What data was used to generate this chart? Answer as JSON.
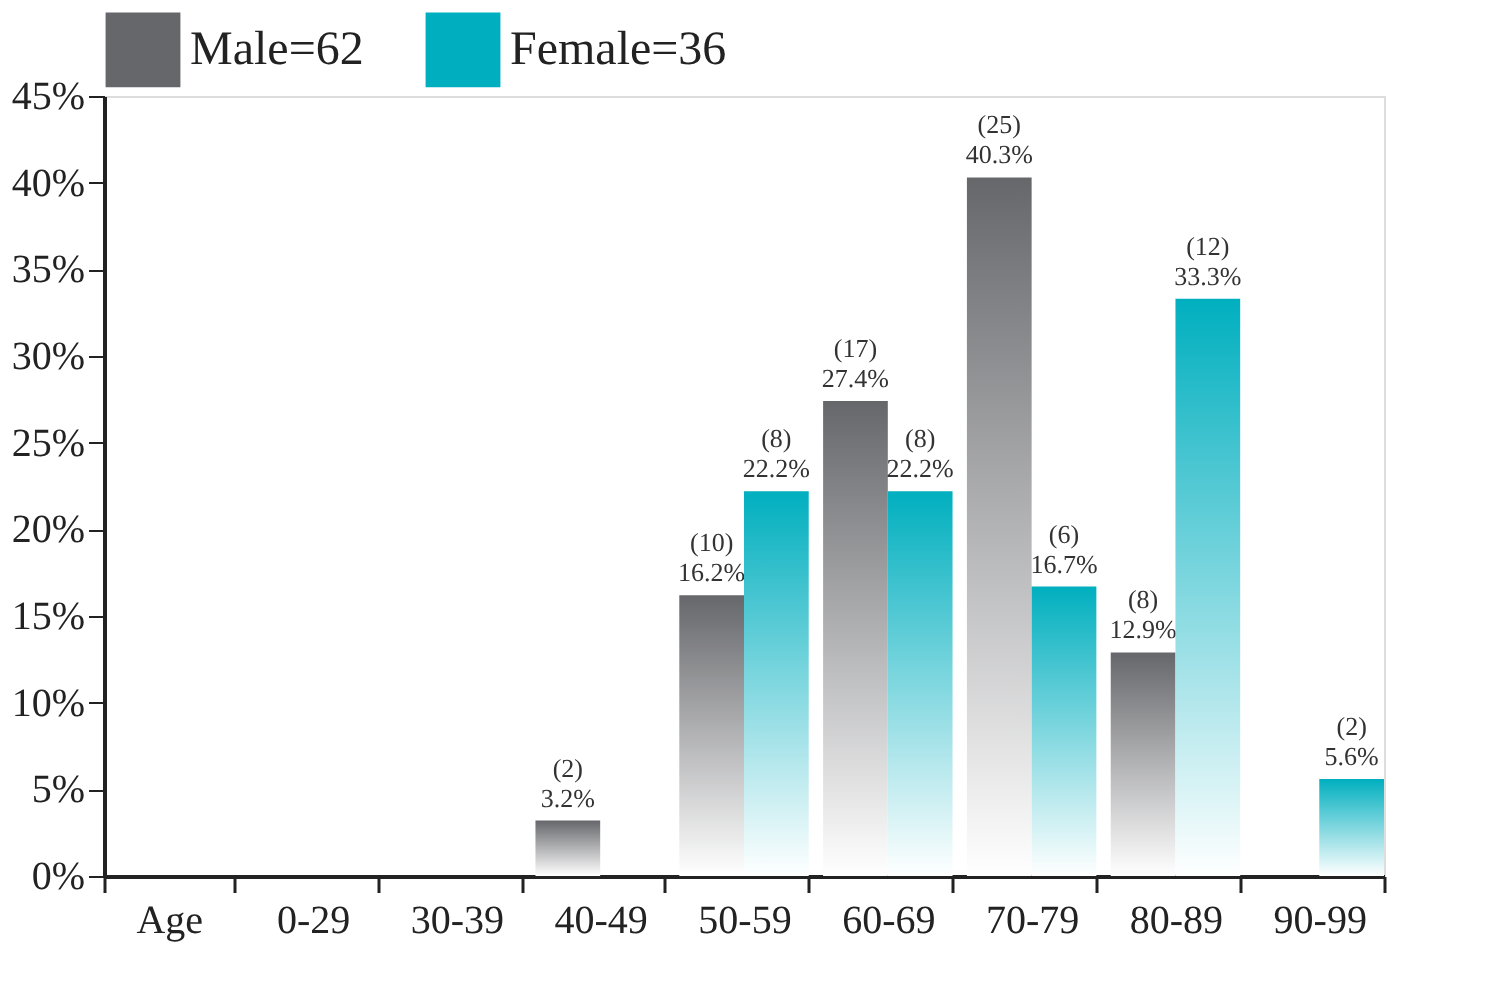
{
  "chart_data": {
    "type": "bar",
    "categories": [
      "Age",
      "0-29",
      "30-39",
      "40-49",
      "50-59",
      "60-69",
      "70-79",
      "80-89",
      "90-99"
    ],
    "series": [
      {
        "name": "Male=62",
        "color": "#66676b",
        "values": [
          null,
          null,
          null,
          3.2,
          16.2,
          27.4,
          40.3,
          12.9,
          null
        ],
        "value_labels": [
          null,
          null,
          null,
          "(2)\n3.2%",
          "(10)\n16.2%",
          "(17)\n27.4%",
          "(25)\n40.3%",
          "(8)\n12.9%",
          null
        ]
      },
      {
        "name": "Female=36",
        "color": "#00afbf",
        "values": [
          null,
          null,
          null,
          null,
          22.2,
          22.2,
          16.7,
          33.3,
          5.6
        ],
        "value_labels": [
          null,
          null,
          null,
          null,
          "(8)\n22.2%",
          "(8)\n22.2%",
          "(6)\n16.7%",
          "(12)\n33.3%",
          "(2)\n5.6%"
        ]
      }
    ],
    "ylim": [
      0,
      45
    ],
    "yticks": [
      {
        "value": 0,
        "label": "0%"
      },
      {
        "value": 5,
        "label": "5%"
      },
      {
        "value": 10,
        "label": "10%"
      },
      {
        "value": 15,
        "label": "15%"
      },
      {
        "value": 20,
        "label": "20%"
      },
      {
        "value": 25,
        "label": "25%"
      },
      {
        "value": 30,
        "label": "30%"
      },
      {
        "value": 35,
        "label": "35%"
      },
      {
        "value": 40,
        "label": "40%"
      },
      {
        "value": 45,
        "label": "45%"
      }
    ],
    "grid": false,
    "legend": "top left"
  }
}
